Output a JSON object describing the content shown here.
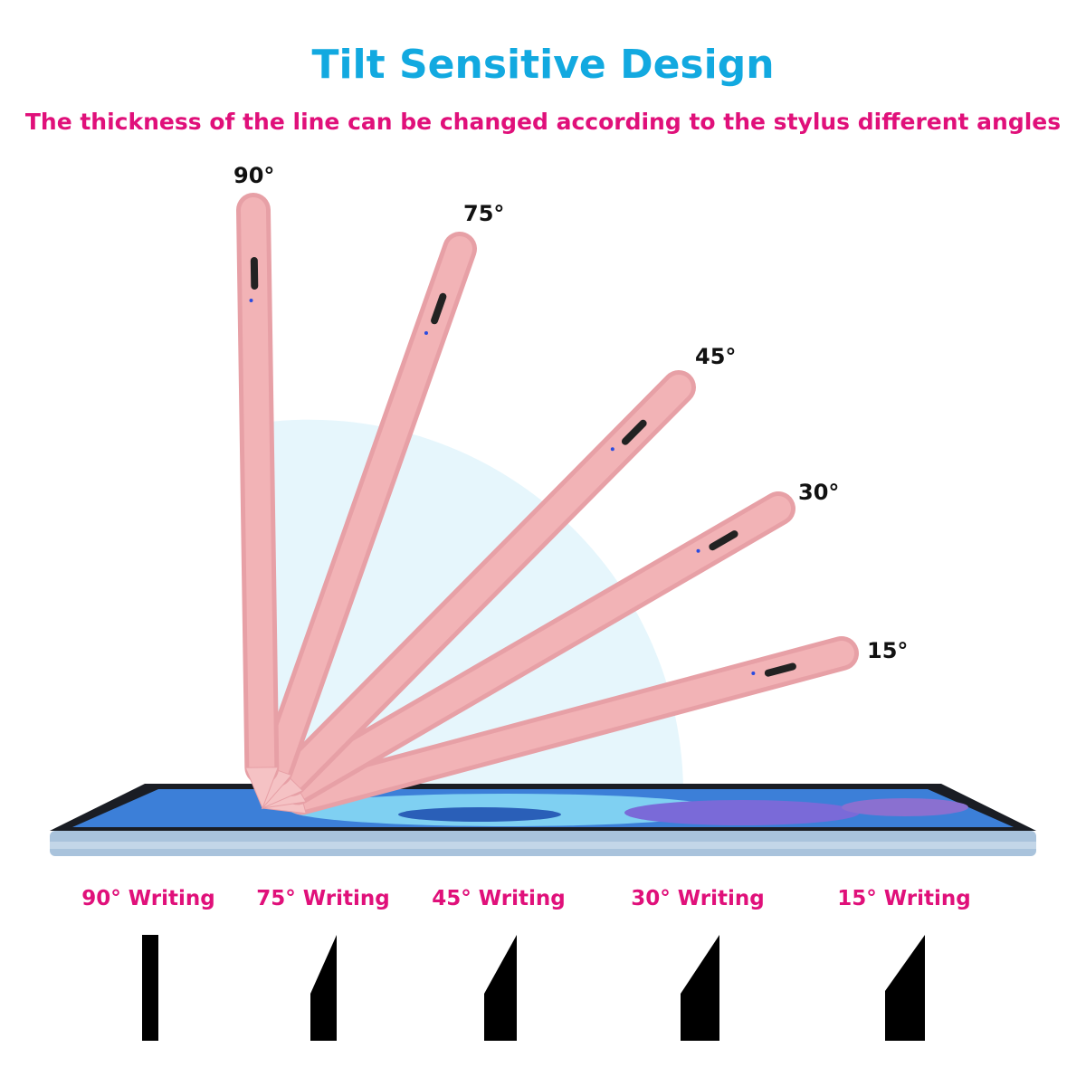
{
  "title": "Tilt Sensitive Design",
  "subtitle": "The thickness of the line can be changed according to the stylus different angles",
  "pen_angles": [
    "90°",
    "75°",
    "45°",
    "30°",
    "15°"
  ],
  "writing_labels": [
    "90° Writing",
    "75° Writing",
    "45° Writing",
    "30° Writing",
    "15° Writing"
  ],
  "colors": {
    "title": "#12a9e0",
    "subtitle": "#e0107a",
    "pen": "#f2b3b6",
    "arc": "#e6f6fc",
    "stroke": "#000000"
  }
}
